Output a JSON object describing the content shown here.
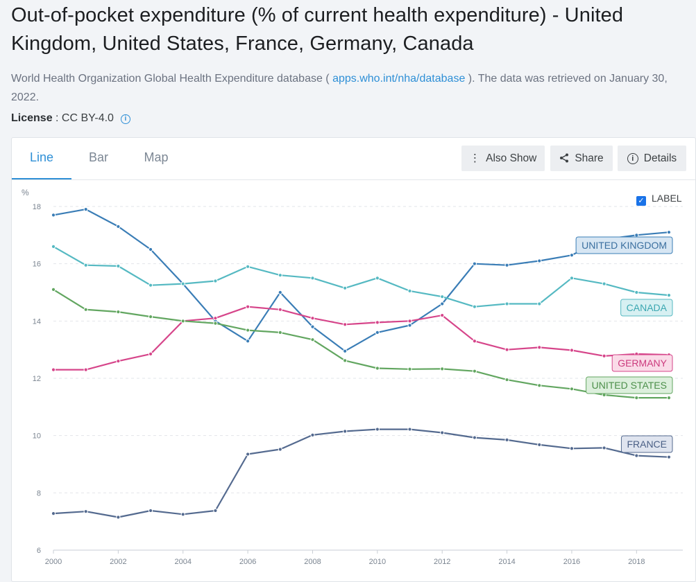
{
  "header": {
    "title": "Out-of-pocket expenditure (% of current health expenditure) - United Kingdom, United States, France, Germany, Canada",
    "source_prefix": "World Health Organization Global Health Expenditure database ( ",
    "source_link": "apps.who.int/nha/database",
    "source_suffix": " ). The data was retrieved on January 30, 2022.",
    "license_label": "License",
    "license_value": " : CC BY-4.0"
  },
  "tabs": [
    {
      "label": "Line",
      "active": true
    },
    {
      "label": "Bar",
      "active": false
    },
    {
      "label": "Map",
      "active": false
    }
  ],
  "toolbar": {
    "also_show": "Also Show",
    "share": "Share",
    "details": "Details",
    "label_toggle": "LABEL"
  },
  "colors": {
    "accent": "#2e8fd6",
    "uk": "#3a7db6",
    "us": "#62a660",
    "france": "#546a8f",
    "germany": "#d6458a",
    "canada": "#55b9c2"
  },
  "chart_data": {
    "type": "line",
    "ylabel": "%",
    "ylim": [
      6,
      18
    ],
    "yticks": [
      6,
      8,
      10,
      12,
      14,
      16,
      18
    ],
    "xlim": [
      2000,
      2019
    ],
    "xticks": [
      2000,
      2002,
      2004,
      2006,
      2008,
      2010,
      2012,
      2014,
      2016,
      2018
    ],
    "grid": true,
    "x": [
      2000,
      2001,
      2002,
      2003,
      2004,
      2005,
      2006,
      2007,
      2008,
      2009,
      2010,
      2011,
      2012,
      2013,
      2014,
      2015,
      2016,
      2017,
      2018,
      2019
    ],
    "series": [
      {
        "name": "UNITED KINGDOM",
        "key": "uk",
        "values": [
          17.7,
          17.9,
          17.3,
          16.5,
          15.3,
          14.0,
          13.3,
          15.0,
          13.8,
          12.95,
          13.6,
          13.85,
          14.6,
          16.0,
          15.95,
          16.1,
          16.3,
          16.85,
          17.0,
          17.1
        ]
      },
      {
        "name": "CANADA",
        "key": "canada",
        "values": [
          16.6,
          15.95,
          15.92,
          15.25,
          15.3,
          15.4,
          15.9,
          15.6,
          15.5,
          15.15,
          15.5,
          15.05,
          14.85,
          14.5,
          14.6,
          14.6,
          15.5,
          15.3,
          15.0,
          14.9
        ]
      },
      {
        "name": "GERMANY",
        "key": "germany",
        "values": [
          12.3,
          12.3,
          12.6,
          12.85,
          14.0,
          14.1,
          14.5,
          14.4,
          14.1,
          13.88,
          13.95,
          14.0,
          14.2,
          13.3,
          13.0,
          13.08,
          12.98,
          12.78,
          12.85,
          12.82
        ]
      },
      {
        "name": "UNITED STATES",
        "key": "us",
        "values": [
          15.1,
          14.4,
          14.32,
          14.15,
          14.0,
          13.92,
          13.68,
          13.6,
          13.35,
          12.62,
          12.35,
          12.32,
          12.33,
          12.25,
          11.95,
          11.75,
          11.63,
          11.42,
          11.32,
          11.32
        ]
      },
      {
        "name": "FRANCE",
        "key": "france",
        "values": [
          7.28,
          7.35,
          7.15,
          7.38,
          7.25,
          7.38,
          9.35,
          9.52,
          10.02,
          10.15,
          10.22,
          10.22,
          10.1,
          9.93,
          9.85,
          9.68,
          9.55,
          9.57,
          9.3,
          9.25
        ]
      }
    ]
  }
}
